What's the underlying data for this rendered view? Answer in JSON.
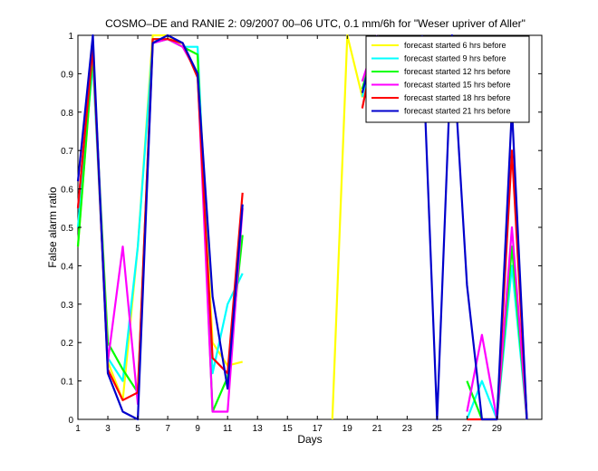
{
  "chart_data": {
    "type": "line",
    "title": "COSMO–DE and RANIE 2: 09/2007 00–06 UTC, 0.1 mm/6h for \"Weser upriver of Aller\"",
    "xlabel": "Days",
    "ylabel": "False alarm ratio",
    "xlim": [
      1,
      32
    ],
    "ylim": [
      0,
      1
    ],
    "xticks": [
      1,
      3,
      5,
      7,
      9,
      11,
      13,
      15,
      17,
      19,
      21,
      23,
      25,
      27,
      29
    ],
    "yticks": [
      0,
      0.1,
      0.2,
      0.3,
      0.4,
      0.5,
      0.6,
      0.7,
      0.8,
      0.9,
      1
    ],
    "legend_position": "top-right",
    "x": [
      1,
      2,
      3,
      4,
      5,
      6,
      7,
      8,
      9,
      10,
      11,
      12,
      13,
      14,
      15,
      16,
      17,
      18,
      19,
      20,
      21,
      22,
      23,
      24,
      25,
      26,
      27,
      28,
      29,
      30,
      31
    ],
    "series": [
      {
        "name": "forecast started 6 hrs before",
        "color": "#ffff00",
        "values": [
          0.45,
          0.95,
          0.15,
          0.05,
          0.45,
          1.0,
          1.0,
          0.97,
          0.95,
          0.2,
          0.14,
          0.15,
          null,
          null,
          null,
          null,
          null,
          0.0,
          1.0,
          0.84,
          1.0,
          null,
          null,
          null,
          null,
          null,
          null,
          null,
          null,
          null,
          null
        ]
      },
      {
        "name": "forecast started 9 hrs before",
        "color": "#00ffff",
        "values": [
          0.5,
          0.93,
          0.16,
          0.1,
          0.45,
          0.98,
          0.99,
          0.97,
          0.97,
          0.12,
          0.3,
          0.38,
          null,
          null,
          null,
          null,
          null,
          null,
          null,
          0.84,
          1.0,
          null,
          null,
          null,
          null,
          null,
          0.0,
          0.1,
          0.0,
          0.4,
          0.0
        ]
      },
      {
        "name": "forecast started 12 hrs before",
        "color": "#00ff00",
        "values": [
          0.45,
          0.95,
          0.2,
          0.13,
          0.07,
          0.99,
          0.99,
          0.97,
          0.95,
          0.02,
          0.11,
          0.48,
          null,
          null,
          null,
          null,
          null,
          null,
          null,
          0.86,
          1.0,
          null,
          null,
          null,
          null,
          null,
          0.1,
          0.0,
          0.0,
          0.45,
          0.0
        ]
      },
      {
        "name": "forecast started 15 hrs before",
        "color": "#ff00ff",
        "values": [
          0.55,
          0.97,
          0.15,
          0.45,
          0.04,
          0.98,
          0.99,
          0.97,
          0.9,
          0.02,
          0.02,
          0.55,
          null,
          null,
          null,
          null,
          null,
          null,
          null,
          0.88,
          1.0,
          null,
          null,
          null,
          null,
          null,
          0.02,
          0.22,
          0.0,
          0.5,
          0.0
        ]
      },
      {
        "name": "forecast started 18 hrs before",
        "color": "#ff0000",
        "values": [
          0.55,
          0.97,
          0.13,
          0.05,
          0.07,
          0.99,
          0.99,
          0.98,
          0.89,
          0.16,
          0.12,
          0.59,
          null,
          null,
          null,
          null,
          null,
          null,
          null,
          0.81,
          1.0,
          null,
          null,
          null,
          null,
          null,
          0.0,
          0.0,
          0.0,
          0.7,
          0.0
        ]
      },
      {
        "name": "forecast started 21 hrs before",
        "color": "#0000cc",
        "values": [
          0.62,
          1.0,
          0.12,
          0.02,
          0.0,
          0.98,
          1.0,
          0.98,
          0.9,
          0.32,
          0.08,
          0.56,
          null,
          null,
          null,
          null,
          null,
          null,
          null,
          0.85,
          1.0,
          null,
          null,
          1.0,
          0.0,
          1.0,
          0.35,
          0.0,
          0.0,
          0.81,
          0.0
        ]
      }
    ],
    "grid": false
  }
}
